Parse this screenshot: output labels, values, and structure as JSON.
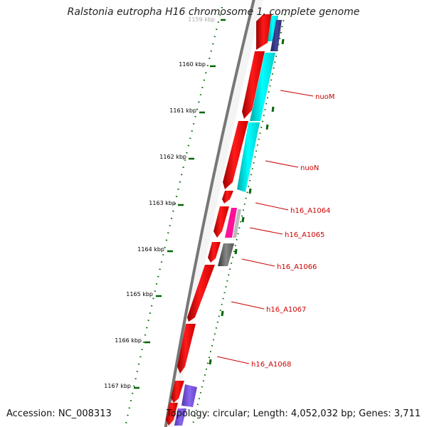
{
  "title": "Ralstonia eutropha H16 chromosome 1, complete genome",
  "footer": {
    "accession": "Accession: NC_008313",
    "summary": "Topology: circular; Length: 4,052,032 bp; Genes: 3,711"
  },
  "ruler": {
    "cropped_label": "1159 kbp",
    "labels": [
      "1160 kbp",
      "1161 kbp",
      "1162 kbp",
      "1163 kbp",
      "1164 kbp",
      "1165 kbp",
      "1166 kbp",
      "1167 kbp"
    ]
  },
  "gene_labels": [
    "nuoM",
    "nuoN",
    "h16_A1064",
    "h16_A1065",
    "h16_A1066",
    "h16_A1067",
    "h16_A1068"
  ],
  "colors": {
    "cds_red": "#ff0000",
    "cyan_track": "#00ffff",
    "navy_track": "#333388",
    "magenta": "#ff0099",
    "gray": "#666666",
    "purple": "#7755dd",
    "ticks_green": "#006600",
    "label_red": "#cc0000"
  }
}
